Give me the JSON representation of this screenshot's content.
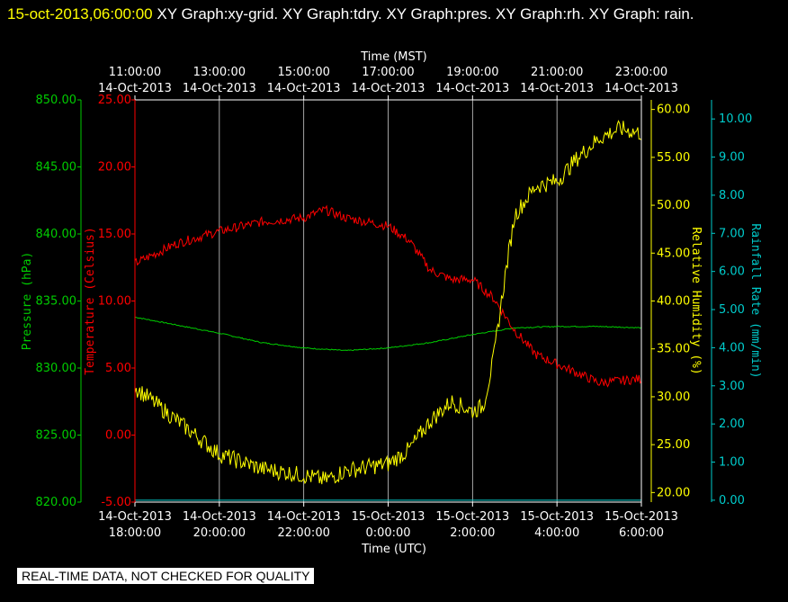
{
  "header": {
    "timestamp": "15-oct-2013,06:00:00",
    "titles": "XY Graph:xy-grid.  XY Graph:tdry.  XY Graph:pres.  XY Graph:rh.  XY Graph: rain."
  },
  "footer": {
    "notice": "REAL-TIME DATA, NOT CHECKED FOR QUALITY"
  },
  "colors": {
    "pressure": "#00cc00",
    "temperature": "#ff0000",
    "humidity": "#ffff00",
    "rain": "#00cccc",
    "grid": "#cccccc",
    "frame": "#ffffff",
    "background": "#000000"
  },
  "chart_data": {
    "type": "line",
    "grid": true,
    "x_top": {
      "label": "Time (MST)",
      "ticks": [
        {
          "time": "11:00:00",
          "date": "14-Oct-2013"
        },
        {
          "time": "13:00:00",
          "date": "14-Oct-2013"
        },
        {
          "time": "15:00:00",
          "date": "14-Oct-2013"
        },
        {
          "time": "17:00:00",
          "date": "14-Oct-2013"
        },
        {
          "time": "19:00:00",
          "date": "14-Oct-2013"
        },
        {
          "time": "21:00:00",
          "date": "14-Oct-2013"
        },
        {
          "time": "23:00:00",
          "date": "14-Oct-2013"
        }
      ]
    },
    "x_bottom": {
      "label": "Time (UTC)",
      "range": [
        "14-Oct-2013 18:00:00",
        "15-Oct-2013 06:00:00"
      ],
      "ticks": [
        {
          "date": "14-Oct-2013",
          "time": "18:00:00"
        },
        {
          "date": "14-Oct-2013",
          "time": "20:00:00"
        },
        {
          "date": "14-Oct-2013",
          "time": "22:00:00"
        },
        {
          "date": "15-Oct-2013",
          "time": "0:00:00"
        },
        {
          "date": "15-Oct-2013",
          "time": "2:00:00"
        },
        {
          "date": "15-Oct-2013",
          "time": "4:00:00"
        },
        {
          "date": "15-Oct-2013",
          "time": "6:00:00"
        }
      ]
    },
    "axes": {
      "pressure": {
        "label": "Pressure (hPa)",
        "range": [
          820,
          850
        ],
        "ticks": [
          "820.00",
          "825.00",
          "830.00",
          "835.00",
          "840.00",
          "845.00",
          "850.00"
        ]
      },
      "temperature": {
        "label": "Temperature (Celsius)",
        "range": [
          -5,
          25
        ],
        "ticks": [
          "-5.00",
          "0.00",
          "5.00",
          "10.00",
          "15.00",
          "20.00",
          "25.00"
        ]
      },
      "humidity": {
        "label": "Relative Humidity (%)",
        "range": [
          19,
          61
        ],
        "ticks": [
          "20.00",
          "25.00",
          "30.00",
          "35.00",
          "40.00",
          "45.00",
          "50.00",
          "55.00",
          "60.00"
        ]
      },
      "rain": {
        "label": "Rainfall Rate (mm/min)",
        "range": [
          -0.05,
          10.5
        ],
        "ticks": [
          "0.00",
          "1.00",
          "2.00",
          "3.00",
          "4.00",
          "5.00",
          "6.00",
          "7.00",
          "8.00",
          "9.00",
          "10.00"
        ]
      }
    },
    "series": [
      {
        "name": "Pressure",
        "axis": "pressure",
        "x": [
          "14-Oct-2013 18:00",
          "14-Oct-2013 19:00",
          "14-Oct-2013 20:00",
          "14-Oct-2013 21:00",
          "14-Oct-2013 22:00",
          "14-Oct-2013 23:00",
          "15-Oct-2013 00:00",
          "15-Oct-2013 01:00",
          "15-Oct-2013 02:00",
          "15-Oct-2013 03:00",
          "15-Oct-2013 04:00",
          "15-Oct-2013 05:00",
          "15-Oct-2013 06:00"
        ],
        "values": [
          833.8,
          833.2,
          832.6,
          831.9,
          831.5,
          831.3,
          831.5,
          831.9,
          832.5,
          833.0,
          833.1,
          833.1,
          833.0
        ]
      },
      {
        "name": "Temperature",
        "axis": "temperature",
        "x": [
          "14-Oct-2013 18:00",
          "14-Oct-2013 19:00",
          "14-Oct-2013 20:00",
          "14-Oct-2013 21:00",
          "14-Oct-2013 22:00",
          "14-Oct-2013 22:30",
          "14-Oct-2013 23:00",
          "15-Oct-2013 00:00",
          "15-Oct-2013 00:30",
          "15-Oct-2013 01:00",
          "15-Oct-2013 01:30",
          "15-Oct-2013 02:00",
          "15-Oct-2013 02:30",
          "15-Oct-2013 03:00",
          "15-Oct-2013 03:30",
          "15-Oct-2013 04:00",
          "15-Oct-2013 05:00",
          "15-Oct-2013 06:00"
        ],
        "values": [
          12.8,
          14.3,
          15.2,
          15.9,
          16.2,
          16.8,
          16.2,
          15.6,
          14.5,
          12.3,
          11.6,
          11.6,
          10.2,
          7.8,
          6.0,
          5.3,
          3.9,
          4.2
        ]
      },
      {
        "name": "Relative Humidity",
        "axis": "humidity",
        "x": [
          "14-Oct-2013 18:00",
          "14-Oct-2013 19:00",
          "14-Oct-2013 20:00",
          "14-Oct-2013 21:00",
          "14-Oct-2013 22:00",
          "14-Oct-2013 22:30",
          "14-Oct-2013 23:00",
          "15-Oct-2013 00:00",
          "15-Oct-2013 00:30",
          "15-Oct-2013 01:00",
          "15-Oct-2013 01:30",
          "15-Oct-2013 02:00",
          "15-Oct-2013 02:15",
          "15-Oct-2013 02:30",
          "15-Oct-2013 02:45",
          "15-Oct-2013 03:00",
          "15-Oct-2013 03:30",
          "15-Oct-2013 04:00",
          "15-Oct-2013 04:30",
          "15-Oct-2013 05:00",
          "15-Oct-2013 05:30",
          "15-Oct-2013 06:00"
        ],
        "values": [
          31.0,
          27.5,
          24.0,
          22.5,
          21.8,
          21.3,
          22.3,
          23.0,
          24.5,
          27.5,
          29.5,
          28.5,
          29.0,
          34.0,
          42.0,
          49.0,
          52.0,
          52.5,
          55.0,
          57.0,
          58.0,
          57.5
        ]
      },
      {
        "name": "Rainfall Rate",
        "axis": "rain",
        "x": [
          "14-Oct-2013 18:00",
          "15-Oct-2013 06:00"
        ],
        "values": [
          0.0,
          0.0
        ]
      }
    ]
  }
}
